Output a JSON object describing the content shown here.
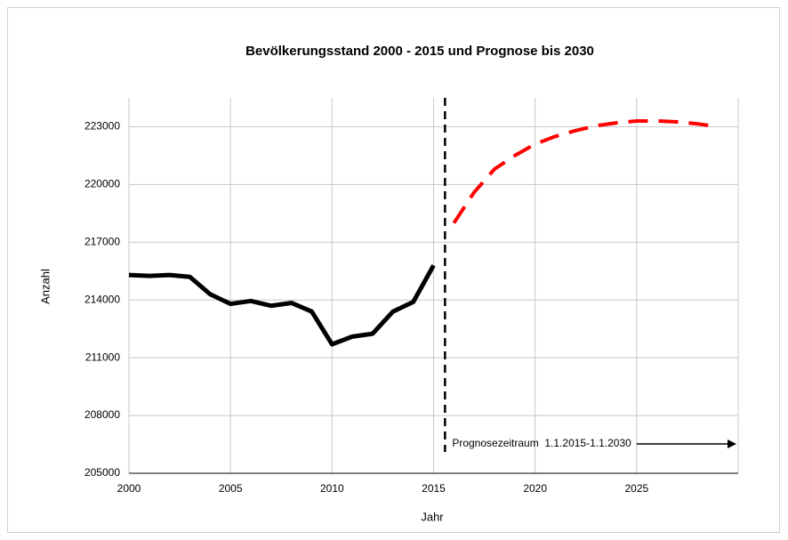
{
  "chart_data": {
    "type": "line",
    "title": "Bevölkerungsstand 2000 - 2015 und Prognose bis 2030",
    "xlabel": "Jahr",
    "ylabel": "Anzahl",
    "annotation": "Prognosezeitraum  1.1.2015-1.1.2030",
    "xlim": [
      2000,
      2030
    ],
    "xticks": [
      2000,
      2005,
      2010,
      2015,
      2020,
      2025
    ],
    "ylim": [
      205000,
      224500
    ],
    "yticks": [
      205000,
      208000,
      211000,
      214000,
      217000,
      220000,
      223000
    ],
    "grid": true,
    "series": [
      {
        "color": "#000000",
        "dashed": false,
        "x": [
          2000,
          2001,
          2002,
          2003,
          2004,
          2005,
          2006,
          2007,
          2008,
          2009,
          2010,
          2011,
          2012,
          2013,
          2014,
          2015
        ],
        "values": [
          215300,
          215250,
          215300,
          215200,
          214300,
          213800,
          213950,
          213700,
          213850,
          213400,
          211700,
          212100,
          212250,
          213400,
          213900,
          215800
        ]
      },
      {
        "color": "#ff0000",
        "dashed": true,
        "x": [
          2016,
          2017,
          2018,
          2019,
          2020,
          2021,
          2022,
          2023,
          2024,
          2025,
          2026,
          2027,
          2028,
          2029
        ],
        "values": [
          218000,
          219600,
          220800,
          221500,
          222100,
          222500,
          222800,
          223050,
          223200,
          223300,
          223300,
          223250,
          223150,
          223000
        ]
      }
    ]
  }
}
